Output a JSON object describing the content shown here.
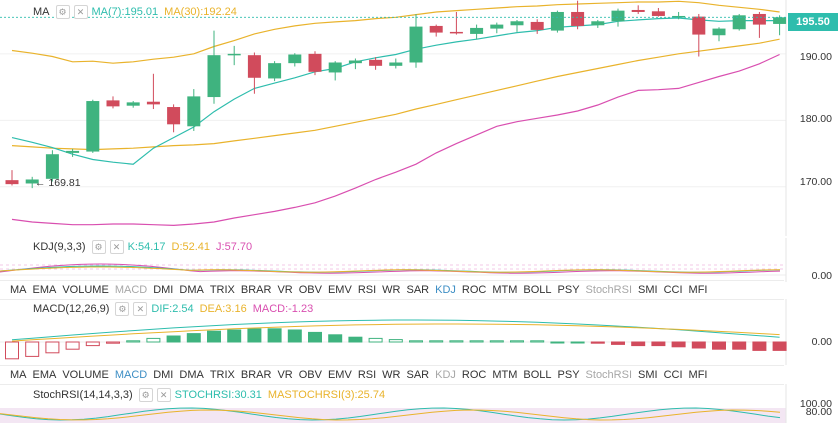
{
  "main_legend": {
    "name": "MA",
    "ma7": "MA(7):195.01",
    "ma30": "MA(30):192.24"
  },
  "price_axis": {
    "labels": [
      "190.00",
      "180.00",
      "170.00"
    ],
    "current": "195.50"
  },
  "low_marker": "← 169.81",
  "kdj_legend": {
    "name": "KDJ(9,3,3)",
    "k": "K:54.17",
    "d": "D:52.41",
    "j": "J:57.70",
    "zero": "0.00"
  },
  "macd_legend": {
    "name": "MACD(12,26,9)",
    "dif": "DIF:2.54",
    "dea": "DEA:3.16",
    "macd": "MACD:-1.23",
    "zero": "0.00"
  },
  "stochrsi_legend": {
    "name": "StochRSI(14,14,3,3)",
    "stoch": "STOCHRSI:30.31",
    "ma": "MASTOCHRSI(3):25.74",
    "top": "100.00",
    "mid": "80.00"
  },
  "indicator_tabs": [
    "MA",
    "EMA",
    "VOLUME",
    "MACD",
    "DMI",
    "DMA",
    "TRIX",
    "BRAR",
    "VR",
    "OBV",
    "EMV",
    "RSI",
    "WR",
    "SAR",
    "KDJ",
    "ROC",
    "MTM",
    "BOLL",
    "PSY",
    "StochRSI",
    "SMI",
    "CCI",
    "MFI"
  ],
  "indicator_tabs_row2": [
    "MA",
    "EMA",
    "VOLUME",
    "MACD",
    "DMI",
    "DMA",
    "TRIX",
    "BRAR",
    "VR",
    "OBV",
    "EMV",
    "RSI",
    "WR",
    "SAR",
    "KDJ",
    "ROC",
    "MTM",
    "BOLL",
    "PSY",
    "StochRSI",
    "SMI",
    "CCI",
    "MFI"
  ],
  "colors": {
    "up": "#3fb37f",
    "down": "#d14b5c",
    "ma7": "#2ebdad",
    "ma30": "#e9b32c",
    "boll_low": "#d94fb0",
    "accent": "#3d8ec4"
  },
  "chart_data": {
    "type": "candlestick",
    "ylim": [
      163.2,
      197.8
    ],
    "candles": [
      {
        "o": 171.0,
        "h": 172.5,
        "l": 170.2,
        "c": 170.4
      },
      {
        "o": 170.5,
        "h": 171.5,
        "l": 169.8,
        "c": 171.1
      },
      {
        "o": 171.2,
        "h": 175.5,
        "l": 170.8,
        "c": 174.9
      },
      {
        "o": 175.1,
        "h": 175.7,
        "l": 174.5,
        "c": 175.4
      },
      {
        "o": 175.3,
        "h": 183.1,
        "l": 175.1,
        "c": 182.9
      },
      {
        "o": 183.0,
        "h": 183.6,
        "l": 181.8,
        "c": 182.1
      },
      {
        "o": 182.2,
        "h": 182.9,
        "l": 181.9,
        "c": 182.7
      },
      {
        "o": 182.8,
        "h": 187.0,
        "l": 181.7,
        "c": 182.4
      },
      {
        "o": 182.0,
        "h": 182.4,
        "l": 178.2,
        "c": 179.4
      },
      {
        "o": 179.1,
        "h": 184.7,
        "l": 178.4,
        "c": 183.6
      },
      {
        "o": 183.5,
        "h": 193.5,
        "l": 182.5,
        "c": 189.8
      },
      {
        "o": 189.8,
        "h": 191.2,
        "l": 188.3,
        "c": 190.0
      },
      {
        "o": 189.8,
        "h": 190.2,
        "l": 184.0,
        "c": 186.4
      },
      {
        "o": 186.3,
        "h": 188.9,
        "l": 185.9,
        "c": 188.6
      },
      {
        "o": 188.6,
        "h": 190.1,
        "l": 188.1,
        "c": 189.9
      },
      {
        "o": 190.0,
        "h": 190.4,
        "l": 186.8,
        "c": 187.3
      },
      {
        "o": 187.2,
        "h": 188.9,
        "l": 186.0,
        "c": 188.7
      },
      {
        "o": 188.6,
        "h": 189.3,
        "l": 187.7,
        "c": 189.0
      },
      {
        "o": 189.1,
        "h": 189.5,
        "l": 187.6,
        "c": 188.2
      },
      {
        "o": 188.2,
        "h": 189.3,
        "l": 187.8,
        "c": 188.7
      },
      {
        "o": 188.7,
        "h": 196.0,
        "l": 187.9,
        "c": 194.1
      },
      {
        "o": 194.2,
        "h": 194.4,
        "l": 192.6,
        "c": 193.2
      },
      {
        "o": 193.3,
        "h": 196.3,
        "l": 192.9,
        "c": 193.1
      },
      {
        "o": 193.0,
        "h": 194.4,
        "l": 192.2,
        "c": 193.9
      },
      {
        "o": 193.8,
        "h": 194.7,
        "l": 193.1,
        "c": 194.4
      },
      {
        "o": 194.3,
        "h": 195.1,
        "l": 193.3,
        "c": 194.9
      },
      {
        "o": 194.8,
        "h": 195.2,
        "l": 193.0,
        "c": 193.6
      },
      {
        "o": 193.5,
        "h": 196.5,
        "l": 193.2,
        "c": 196.3
      },
      {
        "o": 196.3,
        "h": 198.0,
        "l": 193.7,
        "c": 194.2
      },
      {
        "o": 194.3,
        "h": 195.1,
        "l": 193.9,
        "c": 194.9
      },
      {
        "o": 194.9,
        "h": 196.8,
        "l": 194.1,
        "c": 196.5
      },
      {
        "o": 196.6,
        "h": 197.3,
        "l": 196.0,
        "c": 196.3
      },
      {
        "o": 196.4,
        "h": 196.9,
        "l": 195.6,
        "c": 195.7
      },
      {
        "o": 195.6,
        "h": 196.3,
        "l": 195.2,
        "c": 195.7
      },
      {
        "o": 195.6,
        "h": 196.0,
        "l": 189.6,
        "c": 192.9
      },
      {
        "o": 192.8,
        "h": 194.0,
        "l": 191.9,
        "c": 193.8
      },
      {
        "o": 193.7,
        "h": 196.0,
        "l": 193.5,
        "c": 195.8
      },
      {
        "o": 196.0,
        "h": 196.3,
        "l": 192.4,
        "c": 194.4
      },
      {
        "o": 194.5,
        "h": 195.8,
        "l": 192.8,
        "c": 195.5
      }
    ],
    "ma7": [
      177.4,
      176.7,
      175.9,
      174.9,
      174.1,
      173.7,
      173.4,
      175.8,
      177.4,
      179.0,
      181.3,
      183.2,
      184.8,
      185.6,
      186.4,
      187.3,
      187.8,
      188.8,
      189.4,
      189.9,
      190.7,
      191.3,
      191.8,
      192.2,
      192.7,
      193.2,
      193.5,
      194.0,
      194.2,
      194.4,
      194.9,
      195.1,
      195.3,
      195.4,
      195.1,
      194.9,
      195.0,
      195.0,
      195.0
    ],
    "ma30": [
      176.2,
      176.0,
      175.8,
      175.7,
      175.6,
      175.7,
      175.8,
      176.0,
      176.2,
      176.3,
      176.5,
      176.9,
      177.3,
      177.7,
      178.1,
      178.5,
      179.1,
      179.7,
      180.3,
      180.9,
      181.7,
      182.4,
      183.1,
      183.8,
      184.5,
      185.2,
      185.9,
      186.6,
      187.2,
      187.8,
      188.4,
      189.0,
      189.5,
      190.0,
      190.4,
      190.8,
      191.2,
      191.6,
      192.2
    ],
    "boll_up": [
      190.5,
      190.1,
      189.6,
      188.8,
      188.9,
      188.6,
      188.8,
      189.2,
      189.5,
      190.0,
      191.1,
      192.0,
      193.0,
      193.7,
      194.2,
      194.6,
      194.8,
      195.0,
      195.3,
      195.5,
      195.9,
      196.3,
      196.5,
      196.7,
      196.9,
      197.1,
      197.2,
      197.4,
      197.5,
      197.6,
      197.7,
      197.8,
      197.8,
      197.9,
      197.7,
      197.3,
      197.0,
      196.7,
      196.3
    ],
    "boll_low": [
      165.1,
      164.7,
      164.5,
      164.3,
      164.3,
      164.4,
      164.4,
      164.3,
      164.2,
      164.4,
      164.7,
      165.3,
      165.8,
      166.3,
      166.9,
      167.6,
      168.6,
      169.8,
      171.1,
      172.2,
      173.4,
      175.1,
      176.5,
      177.8,
      179.1,
      179.8,
      180.3,
      180.8,
      181.4,
      182.3,
      183.5,
      184.5,
      184.6,
      184.8,
      185.7,
      186.6,
      187.4,
      188.5,
      189.9
    ]
  }
}
